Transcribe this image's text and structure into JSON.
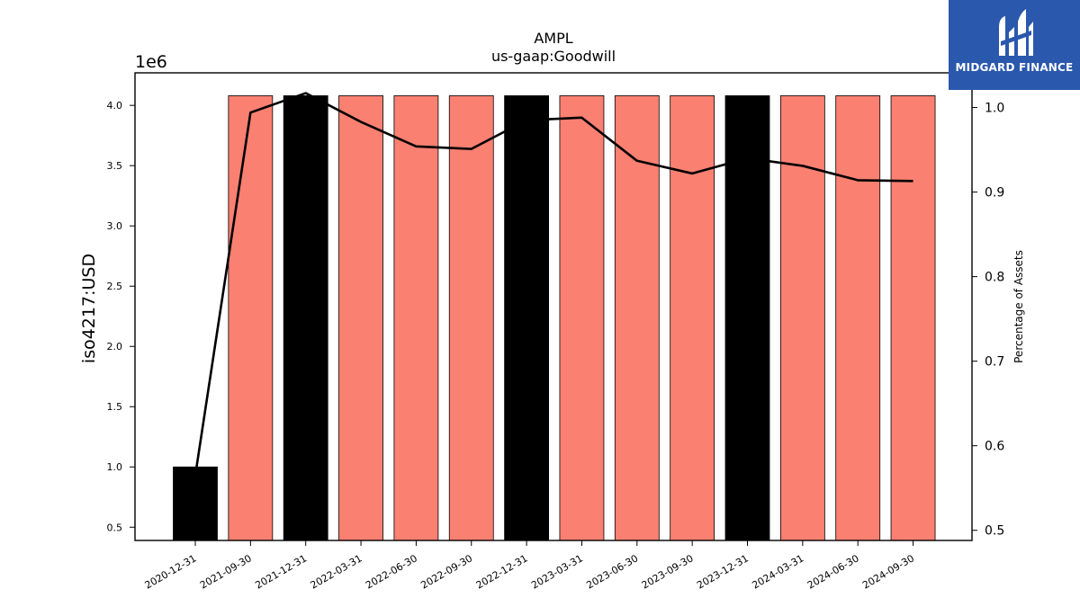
{
  "chart_data": {
    "type": "bar",
    "title": "AMPL",
    "subtitle": "us-gaap:Goodwill",
    "ylabel": "iso4217:USD",
    "y2label": "Percentage of Assets",
    "y_offset_label": "1e6",
    "categories": [
      "2020-12-31",
      "2021-09-30",
      "2021-12-31",
      "2022-03-31",
      "2022-06-30",
      "2022-09-30",
      "2022-12-31",
      "2023-03-31",
      "2023-06-30",
      "2023-09-30",
      "2023-12-31",
      "2024-03-31",
      "2024-06-30",
      "2024-09-30"
    ],
    "values": [
      1000000,
      4080000,
      4080000,
      4080000,
      4080000,
      4080000,
      4080000,
      4080000,
      4080000,
      4080000,
      4080000,
      4080000,
      4080000,
      4080000
    ],
    "bar_colors": [
      "#000000",
      "#fa8072",
      "#000000",
      "#fa8072",
      "#fa8072",
      "#fa8072",
      "#000000",
      "#fa8072",
      "#fa8072",
      "#fa8072",
      "#000000",
      "#fa8072",
      "#fa8072",
      "#fa8072"
    ],
    "line_values": [
      0.565,
      0.994,
      1.017,
      0.983,
      0.954,
      0.951,
      0.985,
      0.988,
      0.937,
      0.922,
      0.94,
      0.931,
      0.914,
      0.913
    ],
    "line_color": "#000000",
    "ylim": [
      390000,
      4270000
    ],
    "y_ticks": [
      500000,
      1000000,
      1500000,
      2000000,
      2500000,
      3000000,
      3500000,
      4000000
    ],
    "y_tick_labels": [
      "0.5",
      "1.0",
      "1.5",
      "2.0",
      "2.5",
      "3.0",
      "3.5",
      "4.0"
    ],
    "y2lim": [
      0.488,
      1.041
    ],
    "y2_ticks": [
      0.5,
      0.6,
      0.7,
      0.8,
      0.9,
      1.0
    ],
    "y2_tick_labels": [
      "0.5",
      "0.6",
      "0.7",
      "0.8",
      "0.9",
      "1.0"
    ],
    "grid": false
  },
  "logo": {
    "text": "MIDGARD FINANCE",
    "color": "#2a58ad"
  }
}
